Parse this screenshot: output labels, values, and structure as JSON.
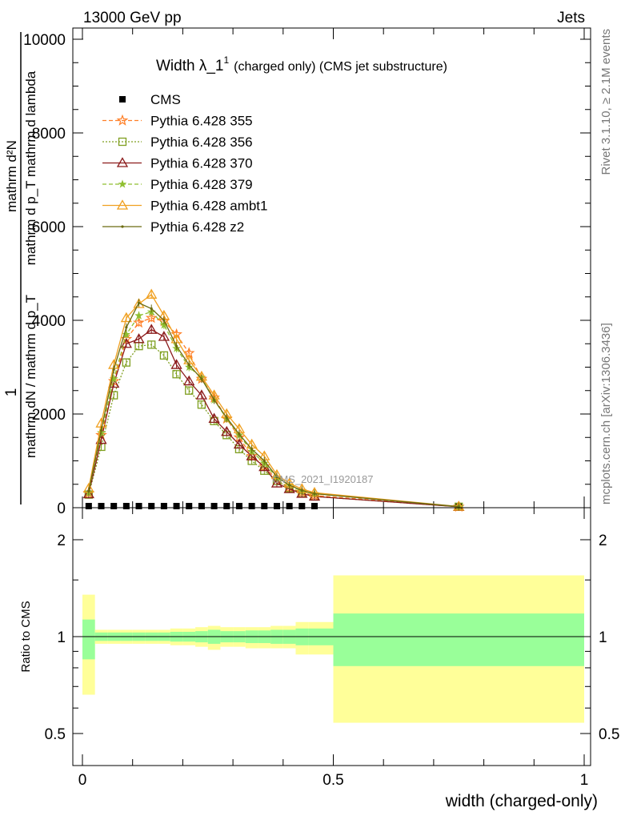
{
  "header": {
    "left": "13000 GeV pp",
    "right": "Jets"
  },
  "side_text": {
    "rivet": "Rivet 3.1.10, ≥ 2.1M events",
    "mcplots": "mcplots.cern.ch [arXiv:1306.3436]"
  },
  "analysis_label": "CMS_2021_I1920187",
  "colors": {
    "cms": "#000000",
    "p355": "#ff7f27",
    "p356": "#7f9f20",
    "p370": "#8b1a1a",
    "p379": "#8fbf30",
    "ambt1": "#f0a020",
    "z2": "#6b6b10",
    "band_stat": "#99ff99",
    "band_total": "#ffff99"
  },
  "chart_data": [
    {
      "type": "line",
      "title_main": "Width λ_1",
      "title_sup": "1",
      "title_rest": "(charged only) (CMS jet substructure)",
      "ylabel": "1 / mathrm dN / mathrm d p_T mathrm d^2N / mathrm d p_T mathrm d lambda",
      "ylabel_numerator": "mathrm d²N",
      "ylabel_numerator_frac": "mathrm d p_T mathrm d lambda",
      "ylabel_one": "1",
      "ylabel_denominator": "mathrm dN / mathrm d p_T",
      "xlim": [
        0,
        1
      ],
      "ylim": [
        0,
        10000
      ],
      "yticks": [
        "0",
        "2000",
        "4000",
        "6000",
        "8000",
        "10000"
      ],
      "x": [
        0.0125,
        0.0375,
        0.0625,
        0.0875,
        0.1125,
        0.1375,
        0.1625,
        0.1875,
        0.2125,
        0.2375,
        0.2625,
        0.2875,
        0.3125,
        0.3375,
        0.3625,
        0.3875,
        0.4125,
        0.4375,
        0.4625,
        0.75
      ],
      "series": [
        {
          "name": "CMS",
          "values": [
            1.2,
            3.5,
            5.0,
            5.2,
            4.6,
            3.8,
            3.0,
            2.3,
            1.7,
            1.25,
            0.9,
            0.65,
            0.45,
            0.32,
            0.22,
            0.15,
            0.1,
            0.07,
            0.05,
            0.005
          ]
        },
        {
          "name": "Pythia 6.428 355",
          "values": [
            310,
            1550,
            2700,
            3600,
            3950,
            4050,
            3980,
            3700,
            3300,
            2750,
            2350,
            1900,
            1500,
            1100,
            880,
            600,
            420,
            330,
            260,
            20
          ]
        },
        {
          "name": "Pythia 6.428 356",
          "values": [
            280,
            1300,
            2400,
            3100,
            3450,
            3480,
            3250,
            2850,
            2500,
            2200,
            1850,
            1550,
            1250,
            1000,
            790,
            570,
            420,
            310,
            240,
            20
          ]
        },
        {
          "name": "Pythia 6.428 370",
          "values": [
            290,
            1450,
            2650,
            3500,
            3600,
            3800,
            3650,
            3050,
            2700,
            2400,
            1900,
            1620,
            1350,
            1100,
            870,
            520,
            400,
            300,
            240,
            20
          ]
        },
        {
          "name": "Pythia 6.428 379",
          "values": [
            320,
            1600,
            2750,
            3700,
            4100,
            4180,
            3900,
            3400,
            3000,
            2780,
            2300,
            1900,
            1550,
            1200,
            950,
            640,
            480,
            350,
            300,
            20
          ]
        },
        {
          "name": "Pythia 6.428 ambt1",
          "values": [
            410,
            1800,
            3050,
            4050,
            4350,
            4550,
            4100,
            3600,
            3150,
            2800,
            2400,
            2000,
            1680,
            1350,
            1100,
            700,
            520,
            400,
            320,
            25
          ]
        },
        {
          "name": "Pythia 6.428 z2",
          "values": [
            350,
            1650,
            2950,
            3850,
            4370,
            4250,
            4000,
            3450,
            3050,
            2750,
            2300,
            1920,
            1570,
            1250,
            1000,
            660,
            480,
            370,
            300,
            22
          ]
        }
      ]
    },
    {
      "type": "area",
      "ylabel": "Ratio to CMS",
      "xlabel": "width (charged-only)",
      "xlim": [
        0,
        1
      ],
      "ylim": [
        0.5,
        2.0
      ],
      "xticks": [
        "0",
        "0.5",
        "1"
      ],
      "yticks": [
        "0.5",
        "1",
        "2"
      ],
      "bins": [
        0,
        0.025,
        0.05,
        0.075,
        0.1,
        0.125,
        0.15,
        0.175,
        0.2,
        0.225,
        0.25,
        0.275,
        0.3,
        0.325,
        0.35,
        0.375,
        0.4,
        0.425,
        0.45,
        0.5,
        1.0
      ],
      "stat_lo": [
        0.85,
        0.97,
        0.97,
        0.97,
        0.97,
        0.97,
        0.97,
        0.965,
        0.965,
        0.96,
        0.95,
        0.96,
        0.96,
        0.955,
        0.955,
        0.95,
        0.95,
        0.94,
        0.94,
        0.81
      ],
      "stat_hi": [
        1.13,
        1.03,
        1.03,
        1.03,
        1.03,
        1.03,
        1.03,
        1.035,
        1.035,
        1.04,
        1.05,
        1.04,
        1.04,
        1.045,
        1.045,
        1.05,
        1.05,
        1.06,
        1.06,
        1.18
      ],
      "tot_lo": [
        0.66,
        0.95,
        0.95,
        0.95,
        0.95,
        0.95,
        0.95,
        0.94,
        0.94,
        0.93,
        0.91,
        0.93,
        0.93,
        0.92,
        0.92,
        0.92,
        0.92,
        0.88,
        0.88,
        0.54
      ],
      "tot_hi": [
        1.35,
        1.05,
        1.05,
        1.05,
        1.05,
        1.05,
        1.05,
        1.06,
        1.06,
        1.07,
        1.08,
        1.07,
        1.07,
        1.07,
        1.07,
        1.08,
        1.08,
        1.11,
        1.11,
        1.55
      ]
    }
  ]
}
